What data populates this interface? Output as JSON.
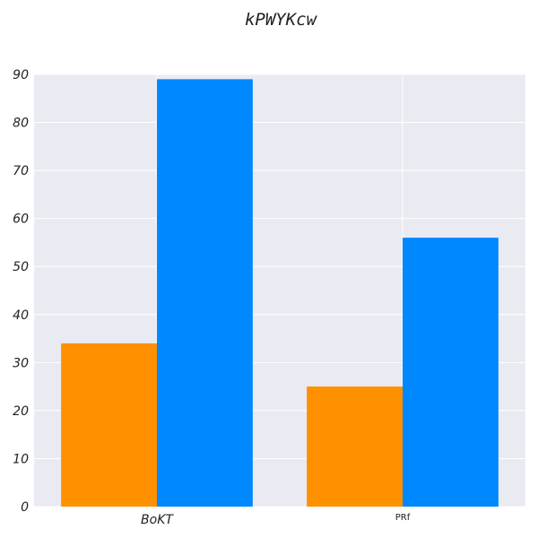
{
  "chart_data": {
    "type": "bar",
    "title": "kPWYKcw",
    "xlabel": "",
    "ylabel": "",
    "categories": [
      "BoKT",
      "PRf"
    ],
    "series": [
      {
        "values": [
          34,
          25
        ],
        "color": "#ff9000"
      },
      {
        "values": [
          89,
          56
        ],
        "color": "#0088ff"
      }
    ],
    "ylim": [
      0,
      90
    ],
    "yticks": [
      0,
      10,
      20,
      30,
      40,
      50,
      60,
      70,
      80,
      90
    ],
    "grid": true,
    "legend": "none",
    "background_color": "#eaeaf2"
  }
}
